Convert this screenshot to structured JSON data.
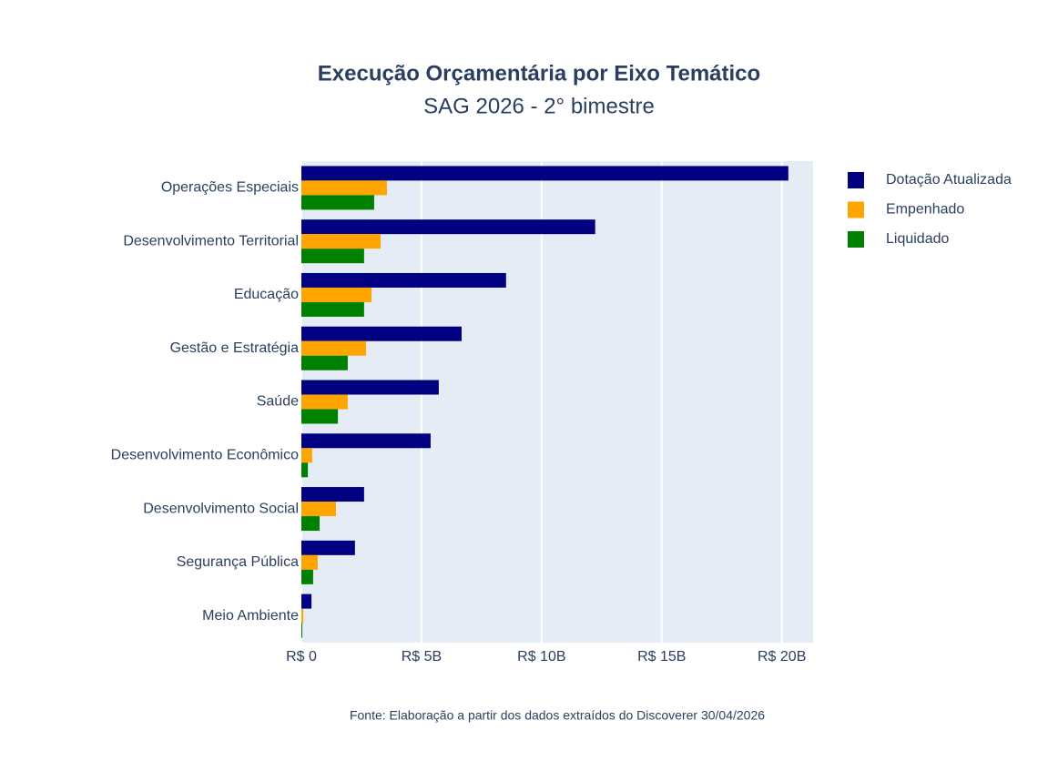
{
  "chart_data": {
    "type": "bar",
    "orientation": "horizontal",
    "title": "Execução Orçamentária por Eixo Temático",
    "subtitle": "SAG 2026 - 2° bimestre",
    "source": "Fonte: Elaboração a partir dos dados extraídos do Discoverer 30/04/2026",
    "categories": [
      "Operações Especiais",
      "Desenvolvimento Territorial",
      "Educação",
      "Gestão e Estratégia",
      "Saúde",
      "Desenvolvimento Econômico",
      "Desenvolvimento Social",
      "Segurança Pública",
      "Meio Ambiente"
    ],
    "series": [
      {
        "name": "Dotação Atualizada",
        "color": "#000080",
        "values": [
          20270000000,
          12230000000,
          8520000000,
          6670000000,
          5720000000,
          5380000000,
          2610000000,
          2230000000,
          420000000
        ]
      },
      {
        "name": "Empenhado",
        "color": "#ffa500",
        "values": [
          3560000000,
          3300000000,
          2920000000,
          2690000000,
          1930000000,
          450000000,
          1440000000,
          680000000,
          80000000
        ]
      },
      {
        "name": "Liquidado",
        "color": "#008000",
        "values": [
          3030000000,
          2610000000,
          2610000000,
          1930000000,
          1520000000,
          270000000,
          760000000,
          490000000,
          40000000
        ]
      }
    ],
    "xlim": [
      0,
      21300000000
    ],
    "xticks": [
      {
        "value": 0,
        "label": "R$ 0"
      },
      {
        "value": 5000000000,
        "label": "R$ 5B"
      },
      {
        "value": 10000000000,
        "label": "R$ 10B"
      },
      {
        "value": 15000000000,
        "label": "R$ 15B"
      },
      {
        "value": 20000000000,
        "label": "R$ 20B"
      }
    ],
    "grid": true,
    "legend": "right"
  }
}
